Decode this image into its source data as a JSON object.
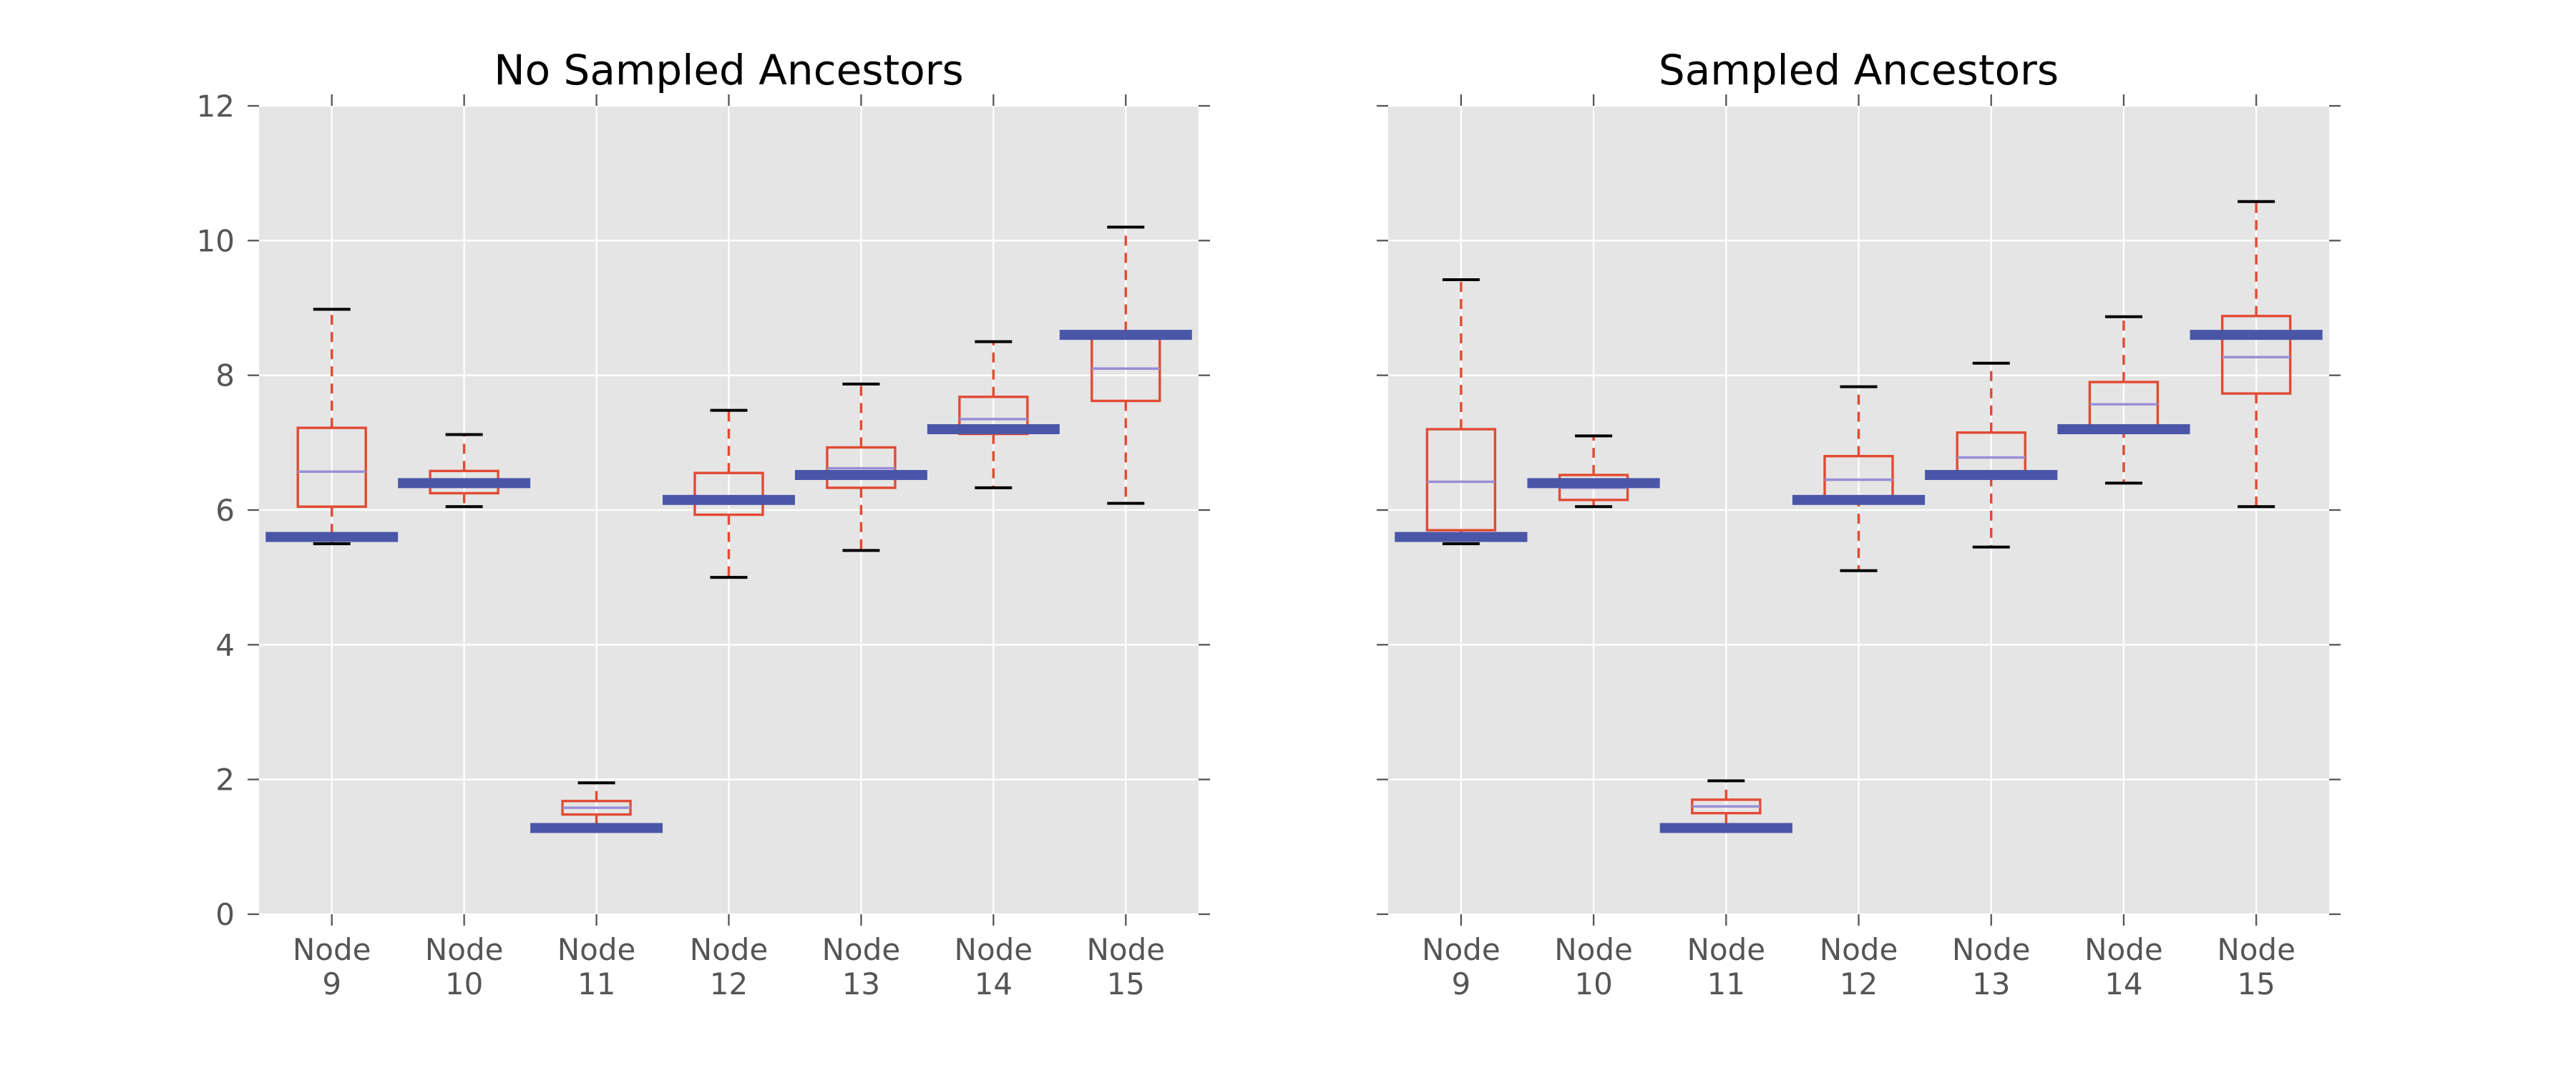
{
  "chart_data": [
    {
      "type": "box",
      "title": "No Sampled Ancestors",
      "xlabel": "",
      "ylabel": "",
      "ylim": [
        0,
        12
      ],
      "yticks": [
        "0",
        "2",
        "4",
        "6",
        "8",
        "10",
        "12"
      ],
      "categories": [
        [
          "Node",
          "9"
        ],
        [
          "Node",
          "10"
        ],
        [
          "Node",
          "11"
        ],
        [
          "Node",
          "12"
        ],
        [
          "Node",
          "13"
        ],
        [
          "Node",
          "14"
        ],
        [
          "Node",
          "15"
        ]
      ],
      "boxes": [
        {
          "whisker_low": 5.5,
          "q1": 6.05,
          "median": 6.57,
          "q3": 7.22,
          "whisker_high": 8.98,
          "reference": 5.6
        },
        {
          "whisker_low": 6.05,
          "q1": 6.25,
          "median": 6.42,
          "q3": 6.58,
          "whisker_high": 7.12,
          "reference": 6.4
        },
        {
          "whisker_low": 1.3,
          "q1": 1.48,
          "median": 1.58,
          "q3": 1.68,
          "whisker_high": 1.95,
          "reference": 1.28
        },
        {
          "whisker_low": 5.0,
          "q1": 5.93,
          "median": 6.2,
          "q3": 6.55,
          "whisker_high": 7.48,
          "reference": 6.15
        },
        {
          "whisker_low": 5.4,
          "q1": 6.33,
          "median": 6.62,
          "q3": 6.93,
          "whisker_high": 7.87,
          "reference": 6.52
        },
        {
          "whisker_low": 6.33,
          "q1": 7.13,
          "median": 7.35,
          "q3": 7.68,
          "whisker_high": 8.5,
          "reference": 7.2
        },
        {
          "whisker_low": 6.1,
          "q1": 7.62,
          "median": 8.1,
          "q3": 8.65,
          "whisker_high": 10.2,
          "reference": 8.6
        }
      ],
      "grid": true
    },
    {
      "type": "box",
      "title": "Sampled Ancestors",
      "xlabel": "",
      "ylabel": "",
      "ylim": [
        0,
        12
      ],
      "categories": [
        [
          "Node",
          "9"
        ],
        [
          "Node",
          "10"
        ],
        [
          "Node",
          "11"
        ],
        [
          "Node",
          "12"
        ],
        [
          "Node",
          "13"
        ],
        [
          "Node",
          "14"
        ],
        [
          "Node",
          "15"
        ]
      ],
      "boxes": [
        {
          "whisker_low": 5.5,
          "q1": 5.7,
          "median": 6.42,
          "q3": 7.2,
          "whisker_high": 9.42,
          "reference": 5.6
        },
        {
          "whisker_low": 6.05,
          "q1": 6.15,
          "median": 6.33,
          "q3": 6.52,
          "whisker_high": 7.1,
          "reference": 6.4
        },
        {
          "whisker_low": 1.25,
          "q1": 1.5,
          "median": 1.6,
          "q3": 1.7,
          "whisker_high": 1.98,
          "reference": 1.28
        },
        {
          "whisker_low": 5.1,
          "q1": 6.2,
          "median": 6.45,
          "q3": 6.8,
          "whisker_high": 7.83,
          "reference": 6.15
        },
        {
          "whisker_low": 5.45,
          "q1": 6.5,
          "median": 6.78,
          "q3": 7.15,
          "whisker_high": 8.18,
          "reference": 6.52
        },
        {
          "whisker_low": 6.4,
          "q1": 7.22,
          "median": 7.57,
          "q3": 7.9,
          "whisker_high": 8.87,
          "reference": 7.2
        },
        {
          "whisker_low": 6.05,
          "q1": 7.73,
          "median": 8.27,
          "q3": 8.88,
          "whisker_high": 10.58,
          "reference": 8.6
        }
      ],
      "grid": true
    }
  ]
}
